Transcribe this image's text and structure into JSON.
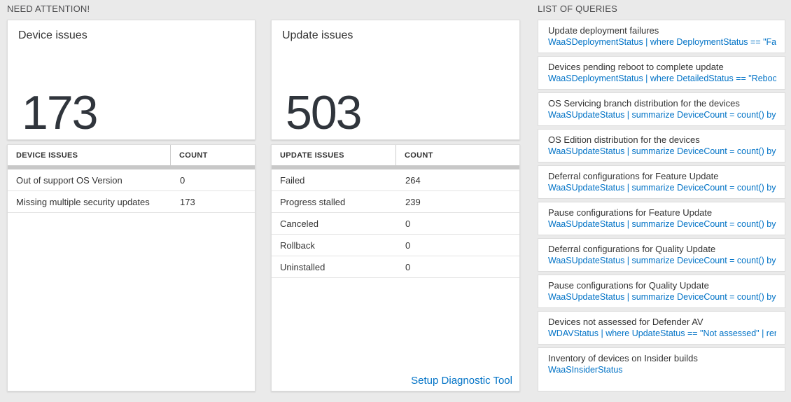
{
  "colors": {
    "background": "#eaeaea",
    "accent_blue": "#0072c6",
    "big_number": "#30353c",
    "table_scrollbar": "#c8c8c8"
  },
  "need_attention": {
    "header": "NEED ATTENTION!",
    "device_card": {
      "title": "Device issues",
      "count": "173"
    },
    "update_card": {
      "title": "Update issues",
      "count": "503"
    },
    "device_table": {
      "headers": {
        "issue": "DEVICE ISSUES",
        "count": "COUNT"
      },
      "rows": [
        {
          "issue": "Out of support OS Version",
          "count": "0"
        },
        {
          "issue": "Missing multiple security updates",
          "count": "173"
        }
      ]
    },
    "update_table": {
      "headers": {
        "issue": "UPDATE ISSUES",
        "count": "COUNT"
      },
      "rows": [
        {
          "issue": "Failed",
          "count": "264"
        },
        {
          "issue": "Progress stalled",
          "count": "239"
        },
        {
          "issue": "Canceled",
          "count": "0"
        },
        {
          "issue": "Rollback",
          "count": "0"
        },
        {
          "issue": "Uninstalled",
          "count": "0"
        }
      ],
      "footer_link": "Setup Diagnostic Tool"
    }
  },
  "queries": {
    "header": "LIST OF QUERIES",
    "items": [
      {
        "title": "Update deployment failures",
        "query": "WaaSDeploymentStatus | where DeploymentStatus == \"Failed\" |..."
      },
      {
        "title": "Devices pending reboot to complete update",
        "query": "WaaSDeploymentStatus | where DetailedStatus == \"Reboot pend..."
      },
      {
        "title": "OS Servicing branch distribution for the devices",
        "query": "WaaSUpdateStatus | summarize DeviceCount = count() by OSSer..."
      },
      {
        "title": "OS Edition distribution for the devices",
        "query": "WaaSUpdateStatus | summarize DeviceCount = count() by OSEdit..."
      },
      {
        "title": "Deferral configurations for Feature Update",
        "query": "WaaSUpdateStatus | summarize DeviceCount = count() by Featur..."
      },
      {
        "title": "Pause configurations for Feature Update",
        "query": "WaaSUpdateStatus | summarize DeviceCount = count() by Featur..."
      },
      {
        "title": "Deferral configurations for Quality Update",
        "query": "WaaSUpdateStatus | summarize DeviceCount = count() by Qualit..."
      },
      {
        "title": "Pause configurations for Quality Update",
        "query": "WaaSUpdateStatus | summarize DeviceCount = count() by Qualit..."
      },
      {
        "title": "Devices not assessed for Defender AV",
        "query": "WDAVStatus | where UpdateStatus == \"Not assessed\" | render ta..."
      },
      {
        "title": "Inventory of devices on Insider builds",
        "query": "WaaSInsiderStatus"
      }
    ]
  }
}
